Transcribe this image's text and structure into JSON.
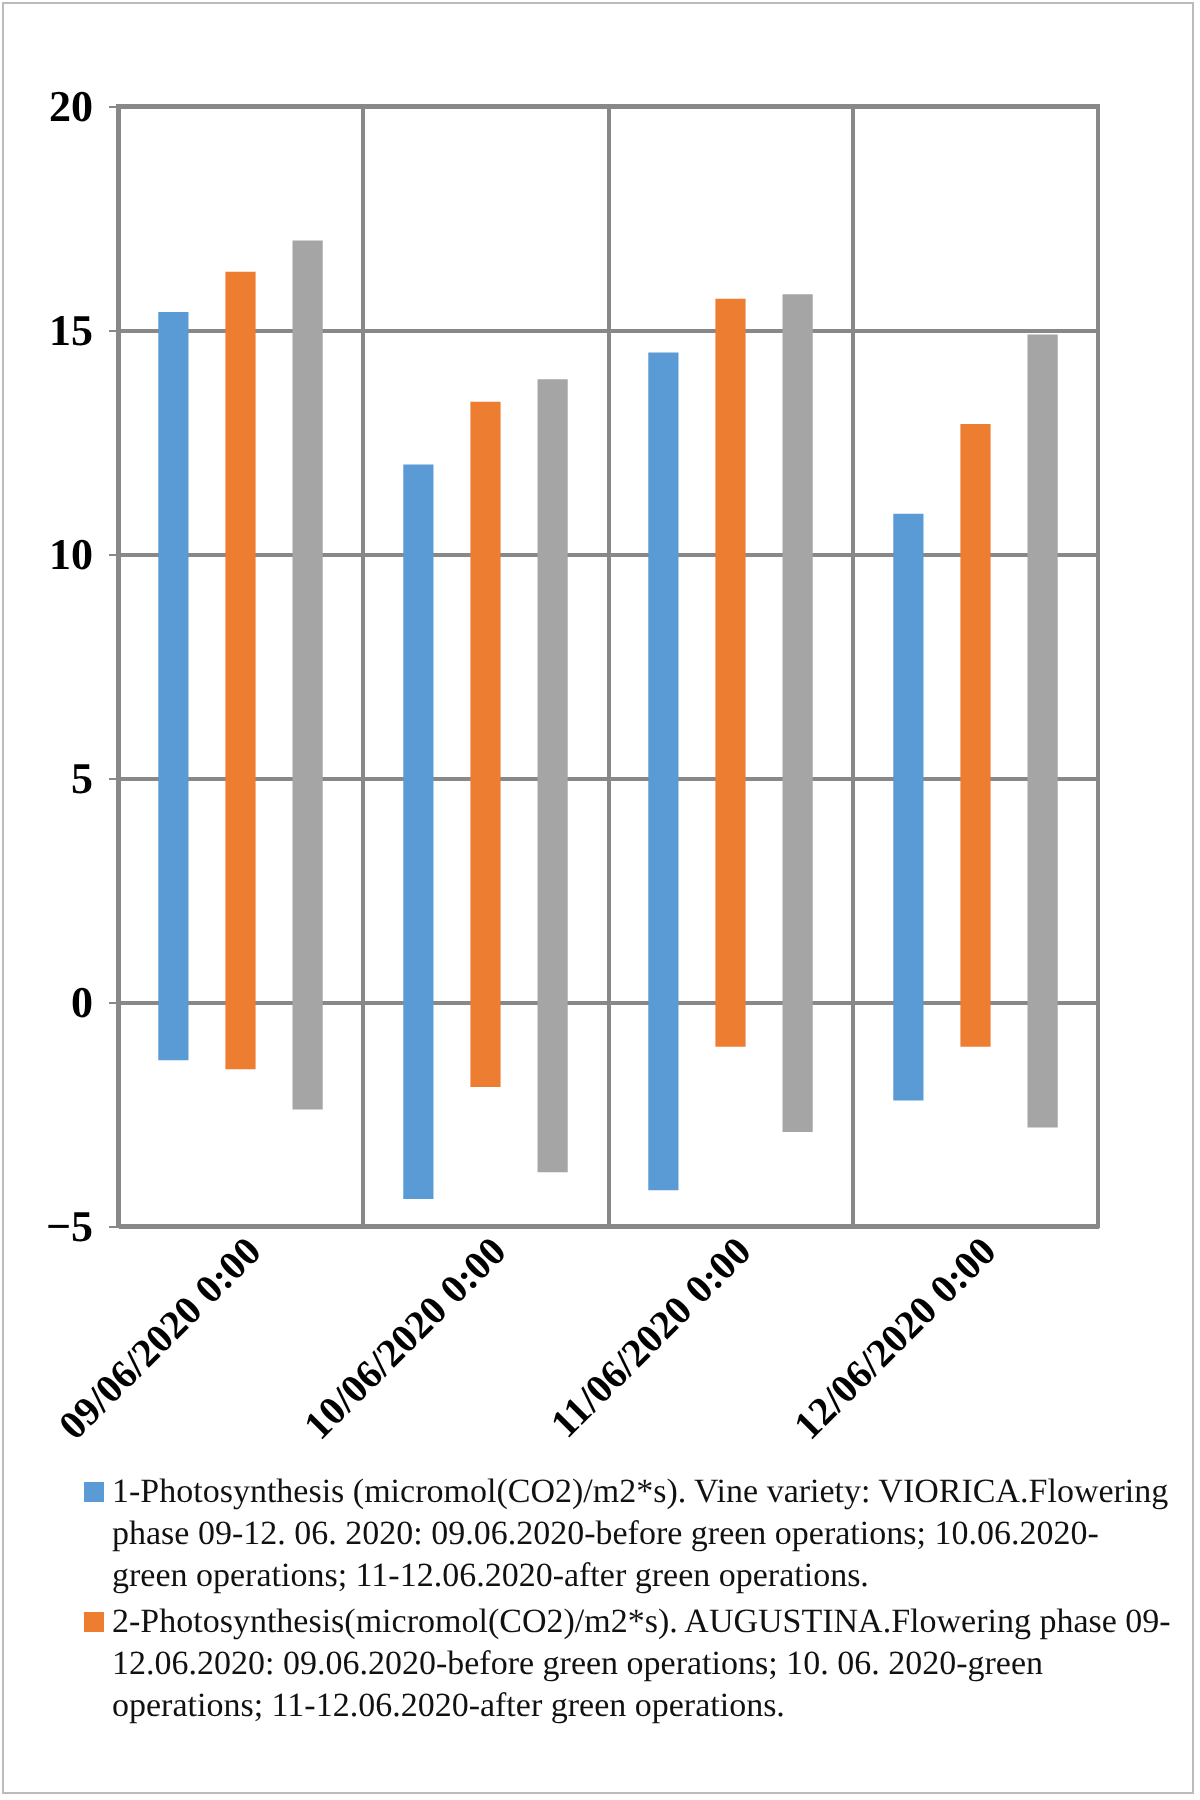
{
  "chart_data": {
    "type": "bar",
    "categories": [
      "09/06/2020 0:00",
      "10/06/2020 0:00",
      "11/06/2020 0:00",
      "12/06/2020 0:00"
    ],
    "series": [
      {
        "name": "1-Photosynthesis (micromol(CO2)/m2*s). Vine variety: VIORICA.Flowering phase 09-12. 06. 2020: 09.06.2020-before green operations; 10.06.2020-green operations; 11-12.06.2020-after green operations.",
        "color": "#5b9bd5",
        "base": [
          -1.3,
          -4.4,
          -4.2,
          -2.2
        ],
        "values": [
          16.7,
          16.4,
          18.7,
          13.1
        ]
      },
      {
        "name": "2-Photosynthesis(micromol(CO2)/m2*s). AUGUSTINA.Flowering phase 09-12.06.2020: 09.06.2020-before green operations; 10. 06. 2020-green operations;  11-12.06.2020-after green operations.",
        "color": "#ed7d31",
        "base": [
          -1.5,
          -1.9,
          -1.0,
          -1.0
        ],
        "values": [
          17.8,
          15.3,
          16.7,
          13.9
        ]
      },
      {
        "color": "#a5a5a5",
        "base": [
          -2.4,
          -3.8,
          -2.9,
          -2.8
        ],
        "values": [
          19.4,
          17.7,
          18.7,
          17.7
        ]
      }
    ],
    "ylim": [
      -5,
      20
    ],
    "yticks": [
      -5,
      0,
      5,
      10,
      15,
      20
    ],
    "grid": true,
    "legend": "bottom"
  }
}
